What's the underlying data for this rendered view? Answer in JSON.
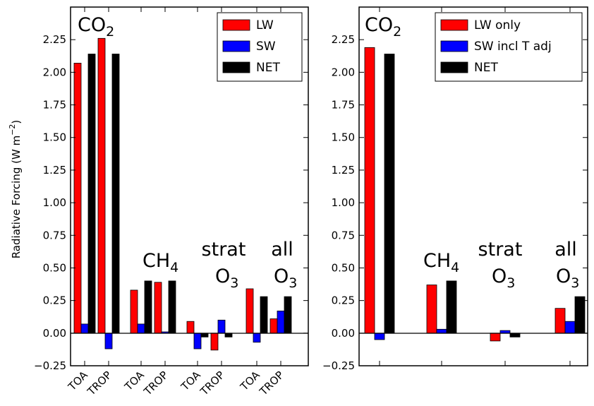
{
  "figure": {
    "ylabel": "Radiative Forcing (W m",
    "ylabel_sup": "−2",
    "ylabel_close": ")"
  },
  "chart_data": [
    {
      "type": "bar",
      "panel": "left",
      "ylim": [
        -0.25,
        2.5
      ],
      "yticks": [
        "−0.25",
        "0.00",
        "0.25",
        "0.50",
        "0.75",
        "1.00",
        "1.25",
        "1.50",
        "1.75",
        "2.00",
        "2.25"
      ],
      "ytick_values": [
        -0.25,
        0,
        0.25,
        0.5,
        0.75,
        1.0,
        1.25,
        1.5,
        1.75,
        2.0,
        2.25
      ],
      "categories": [
        "TOA",
        "TROP",
        "TOA",
        "TROP",
        "TOA",
        "TROP",
        "TOA",
        "TROP"
      ],
      "series": [
        {
          "name": "LW",
          "color": "#ff0000",
          "values": [
            2.07,
            2.26,
            0.33,
            0.39,
            0.09,
            -0.13,
            0.34,
            0.11
          ]
        },
        {
          "name": "SW",
          "color": "#0000ff",
          "values": [
            0.07,
            -0.12,
            0.07,
            0.01,
            -0.12,
            0.1,
            -0.07,
            0.17
          ]
        },
        {
          "name": "NET",
          "color": "#000000",
          "values": [
            2.14,
            2.14,
            0.4,
            0.4,
            -0.03,
            -0.03,
            0.28,
            0.28
          ]
        }
      ],
      "legend": "top-right",
      "grid": false,
      "annotations": [
        {
          "main": "CO",
          "sub": "2"
        },
        {
          "main": "CH",
          "sub": "4"
        },
        {
          "main": "strat",
          "second_main": "O",
          "sub": "3"
        },
        {
          "main": "all",
          "second_main": "O",
          "sub": "3"
        }
      ]
    },
    {
      "type": "bar",
      "panel": "right",
      "ylim": [
        -0.25,
        2.5
      ],
      "yticks": [
        "−0.25",
        "0.00",
        "0.25",
        "0.50",
        "0.75",
        "1.00",
        "1.25",
        "1.50",
        "1.75",
        "2.00",
        "2.25"
      ],
      "ytick_values": [
        -0.25,
        0,
        0.25,
        0.5,
        0.75,
        1.0,
        1.25,
        1.5,
        1.75,
        2.0,
        2.25
      ],
      "categories": [
        "",
        "",
        "",
        ""
      ],
      "series": [
        {
          "name": "LW only",
          "color": "#ff0000",
          "values": [
            2.19,
            0.37,
            -0.06,
            0.19
          ]
        },
        {
          "name": "SW incl T adj",
          "color": "#0000ff",
          "values": [
            -0.05,
            0.03,
            0.02,
            0.09
          ]
        },
        {
          "name": "NET",
          "color": "#000000",
          "values": [
            2.14,
            0.4,
            -0.03,
            0.28
          ]
        }
      ],
      "legend": "top-right",
      "grid": false,
      "annotations": [
        {
          "main": "CO",
          "sub": "2"
        },
        {
          "main": "CH",
          "sub": "4"
        },
        {
          "main": "strat",
          "second_main": "O",
          "sub": "3"
        },
        {
          "main": "all",
          "second_main": "O",
          "sub": "3"
        }
      ]
    }
  ]
}
